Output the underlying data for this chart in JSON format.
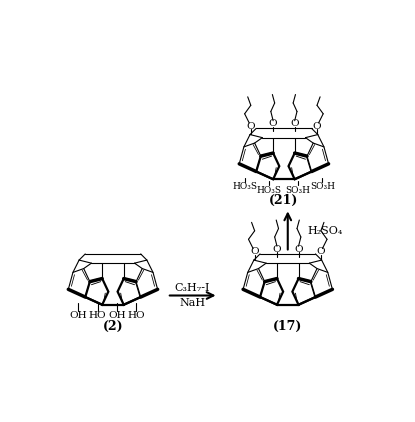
{
  "bg_color": "#ffffff",
  "fig_width": 4.15,
  "fig_height": 4.22,
  "dpi": 100,
  "compound2_label": "(2)",
  "compound17_label": "(17)",
  "compound21_label": "(21)",
  "reagent1_line1": "C₃H₇-I",
  "reagent1_line2": "NaH",
  "reagent2": "H₂SO₄"
}
